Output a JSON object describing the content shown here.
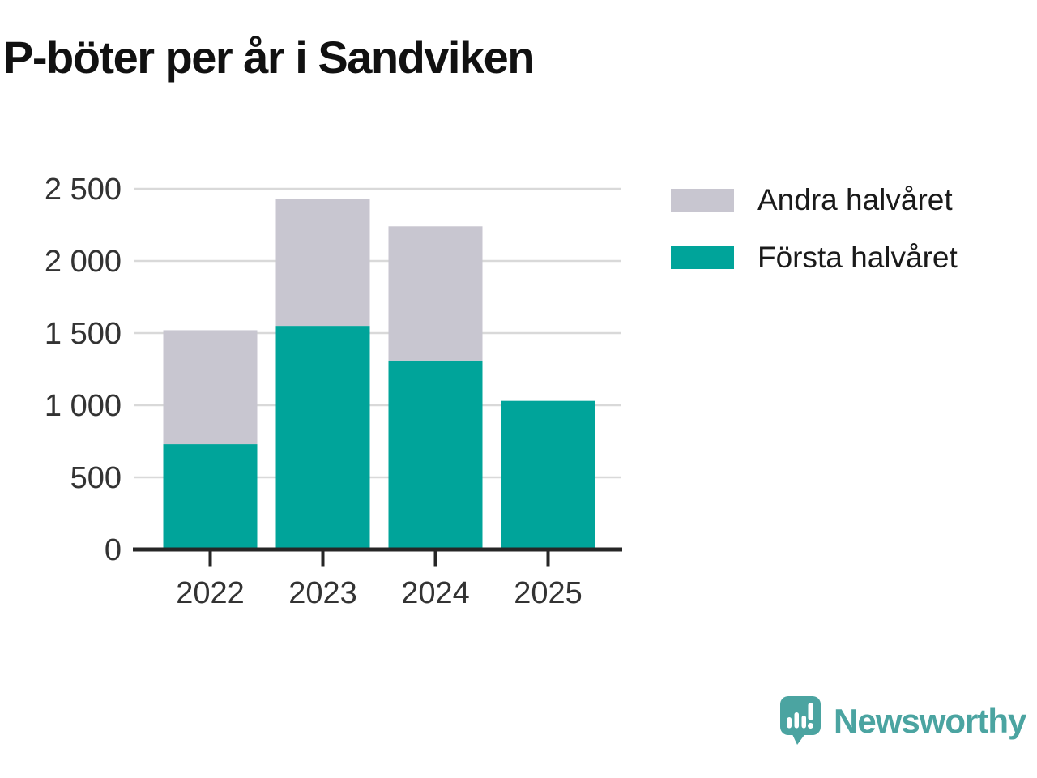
{
  "title": "P-böter per år i Sandviken",
  "chart_data": {
    "type": "bar",
    "stacked": true,
    "title": "P-böter per år i Sandviken",
    "categories": [
      "2022",
      "2023",
      "2024",
      "2025"
    ],
    "series": [
      {
        "name": "Första halvåret",
        "color": "#00a49a",
        "values": [
          730,
          1550,
          1310,
          1030
        ]
      },
      {
        "name": "Andra halvåret",
        "color": "#c8c6d0",
        "values": [
          790,
          880,
          930,
          0
        ]
      }
    ],
    "totals": [
      1520,
      2430,
      2240,
      1030
    ],
    "xlabel": "",
    "ylabel": "",
    "ylim": [
      0,
      2500
    ],
    "yticks": [
      0,
      500,
      1000,
      1500,
      2000,
      2500
    ],
    "ytick_labels": [
      "0",
      "500",
      "1 000",
      "1 500",
      "2 000",
      "2 500"
    ],
    "grid": true,
    "legend_position": "top-right",
    "colors": {
      "grid": "#d9d9d9",
      "axis": "#262626",
      "tick_label": "#333333"
    }
  },
  "legend": {
    "items": [
      {
        "label": "Andra halvåret",
        "color": "#c8c6d0"
      },
      {
        "label": "Första halvåret",
        "color": "#00a49a"
      }
    ]
  },
  "branding": {
    "name": "Newsworthy",
    "color": "#4ba4a1"
  }
}
